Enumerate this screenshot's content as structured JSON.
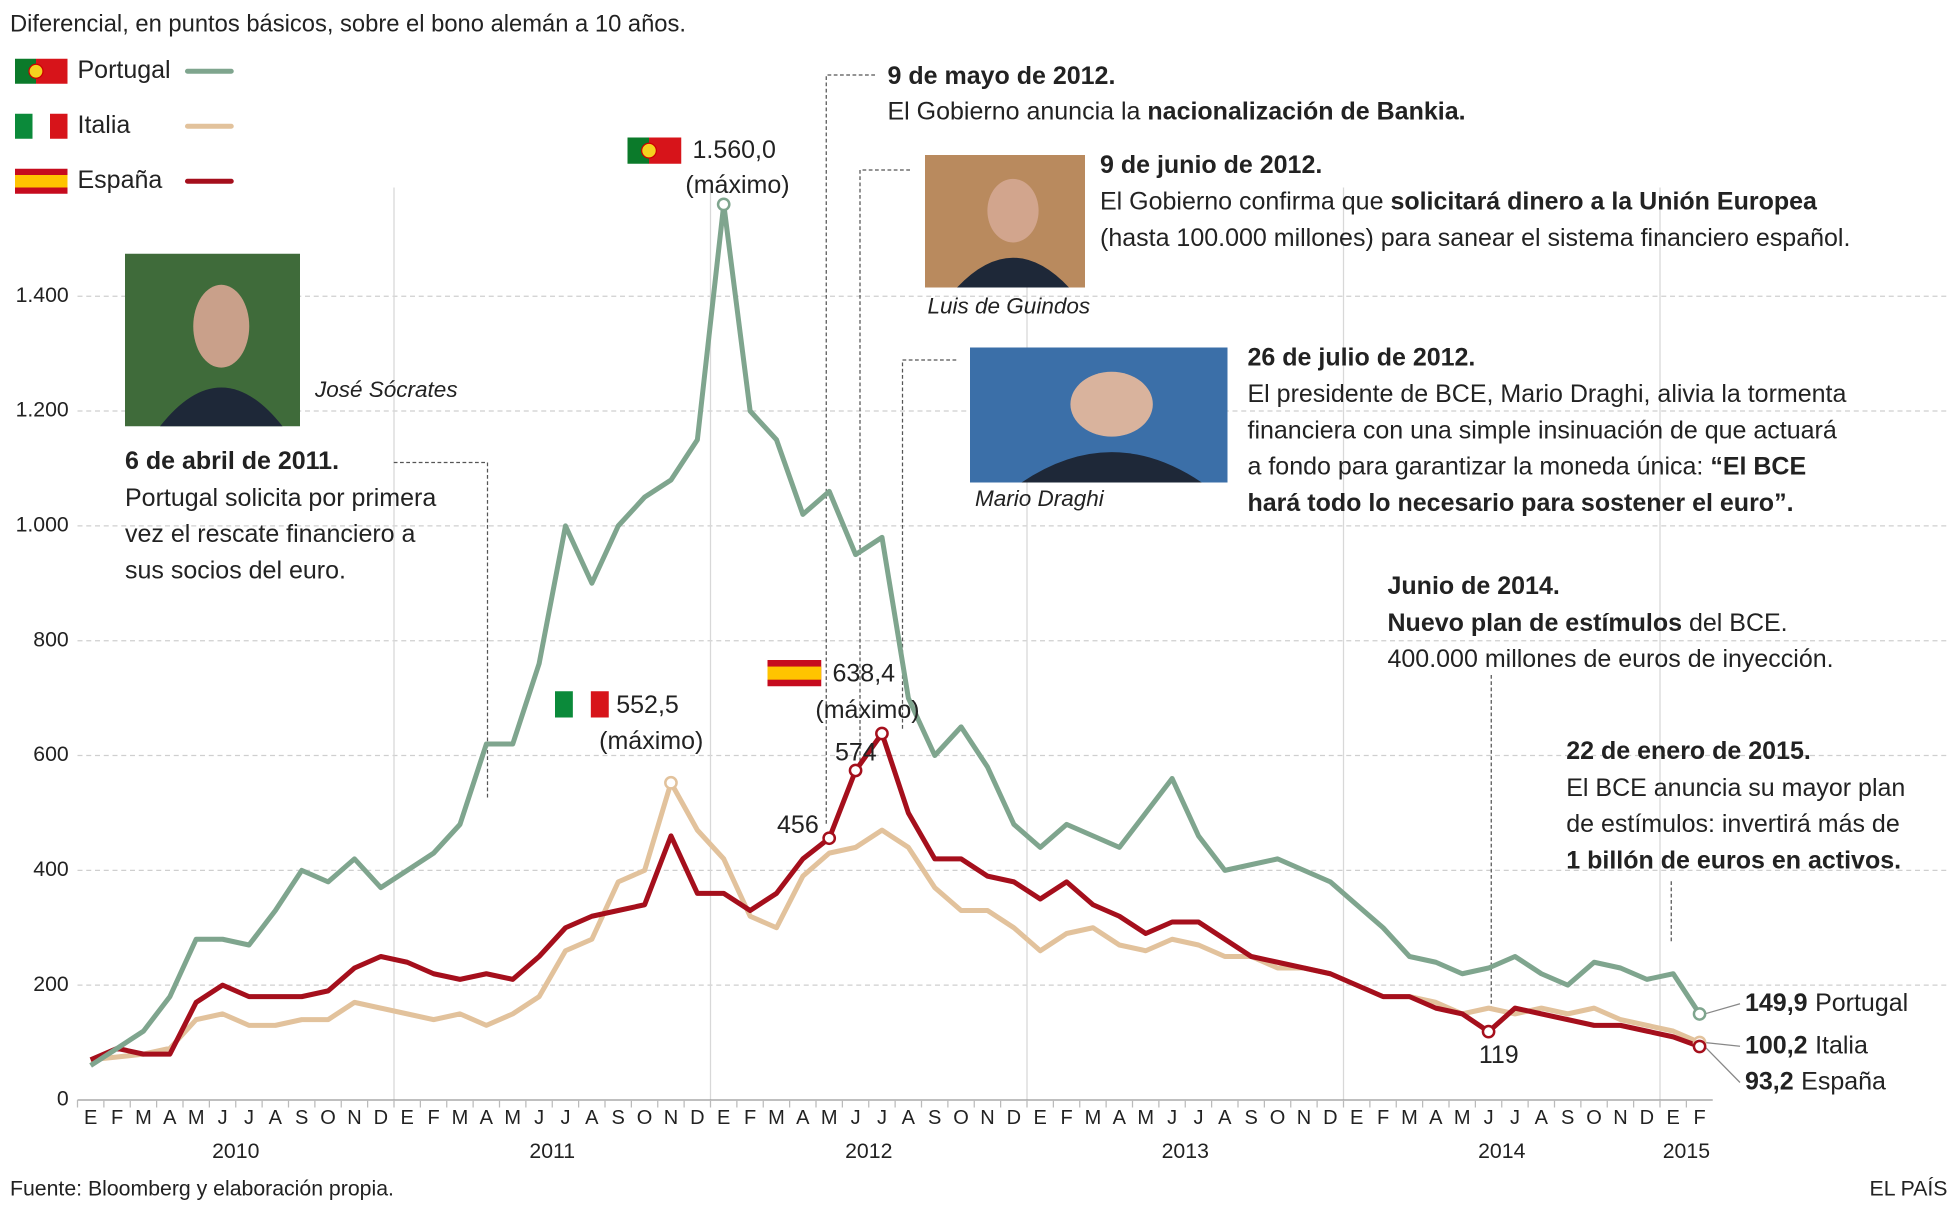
{
  "chart_data": {
    "type": "line",
    "subtitle": "Diferencial, en puntos básicos, sobre el bono alemán a 10 años.",
    "categories": [
      "E",
      "F",
      "M",
      "A",
      "M",
      "J",
      "J",
      "A",
      "S",
      "O",
      "N",
      "D",
      "E",
      "F",
      "M",
      "A",
      "M",
      "J",
      "J",
      "A",
      "S",
      "O",
      "N",
      "D",
      "E",
      "F",
      "M",
      "A",
      "M",
      "J",
      "J",
      "A",
      "S",
      "O",
      "N",
      "D",
      "E",
      "F",
      "M",
      "A",
      "M",
      "J",
      "J",
      "A",
      "S",
      "O",
      "N",
      "D",
      "E",
      "F",
      "M",
      "A",
      "M",
      "J",
      "J",
      "A",
      "S",
      "O",
      "N",
      "D",
      "E",
      "F"
    ],
    "years": [
      "2010",
      "2011",
      "2012",
      "2013",
      "2014",
      "2015"
    ],
    "series": [
      {
        "name": "Portugal",
        "color": "#7fa58e",
        "peak_note": "(máximo)",
        "values": [
          60,
          90,
          120,
          180,
          280,
          280,
          270,
          330,
          400,
          380,
          420,
          370,
          400,
          430,
          480,
          620,
          620,
          760,
          1000,
          900,
          1000,
          1050,
          1080,
          1150,
          1560,
          1200,
          1150,
          1020,
          1060,
          950,
          980,
          700,
          600,
          650,
          580,
          480,
          440,
          480,
          460,
          440,
          500,
          560,
          460,
          400,
          410,
          420,
          400,
          380,
          340,
          300,
          250,
          240,
          220,
          230,
          250,
          220,
          200,
          240,
          230,
          210,
          220,
          149.9
        ],
        "value_labels": [
          null,
          null,
          null,
          null,
          null,
          null,
          null,
          null,
          null,
          null,
          null,
          null,
          null,
          null,
          null,
          null,
          null,
          null,
          null,
          null,
          null,
          null,
          null,
          null,
          "1.560,0",
          null,
          null,
          null,
          null,
          null,
          null,
          null,
          null,
          null,
          null,
          null,
          null,
          null,
          null,
          null,
          null,
          null,
          null,
          null,
          null,
          null,
          null,
          null,
          null,
          null,
          null,
          null,
          null,
          null,
          null,
          null,
          null,
          null,
          null,
          null,
          null,
          "149,9"
        ]
      },
      {
        "name": "Italia",
        "color": "#e2c29c",
        "peak_note": "(máximo)",
        "values": [
          70,
          75,
          80,
          90,
          140,
          150,
          130,
          130,
          140,
          140,
          170,
          160,
          150,
          140,
          150,
          130,
          150,
          180,
          260,
          280,
          380,
          400,
          552.5,
          470,
          420,
          320,
          300,
          390,
          430,
          440,
          470,
          440,
          370,
          330,
          330,
          300,
          260,
          290,
          300,
          270,
          260,
          280,
          270,
          250,
          250,
          230,
          230,
          220,
          200,
          180,
          180,
          170,
          150,
          160,
          150,
          160,
          150,
          160,
          140,
          130,
          120,
          100.2
        ],
        "value_labels": [
          null,
          null,
          null,
          null,
          null,
          null,
          null,
          null,
          null,
          null,
          null,
          null,
          null,
          null,
          null,
          null,
          null,
          null,
          null,
          null,
          null,
          null,
          "552,5",
          null,
          null,
          null,
          null,
          null,
          null,
          null,
          null,
          null,
          null,
          null,
          null,
          null,
          null,
          null,
          null,
          null,
          null,
          null,
          null,
          null,
          null,
          null,
          null,
          null,
          null,
          null,
          null,
          null,
          null,
          null,
          null,
          null,
          null,
          null,
          null,
          null,
          null,
          "100,2"
        ]
      },
      {
        "name": "España",
        "color": "#a50f1c",
        "peak_note": "(máximo)",
        "values": [
          70,
          90,
          80,
          80,
          170,
          200,
          180,
          180,
          180,
          190,
          230,
          250,
          240,
          220,
          210,
          220,
          210,
          250,
          300,
          320,
          330,
          340,
          460,
          360,
          360,
          330,
          360,
          420,
          456,
          574,
          638.4,
          500,
          420,
          420,
          390,
          380,
          350,
          380,
          340,
          320,
          290,
          310,
          310,
          280,
          250,
          240,
          230,
          220,
          200,
          180,
          180,
          160,
          150,
          119,
          160,
          150,
          140,
          130,
          130,
          120,
          110,
          93.2
        ],
        "value_labels": [
          null,
          null,
          null,
          null,
          null,
          null,
          null,
          null,
          null,
          null,
          null,
          null,
          null,
          null,
          null,
          null,
          null,
          null,
          null,
          null,
          null,
          null,
          null,
          null,
          null,
          null,
          null,
          null,
          "456",
          "574",
          "638,4",
          null,
          null,
          null,
          null,
          null,
          null,
          null,
          null,
          null,
          null,
          null,
          null,
          null,
          null,
          null,
          null,
          null,
          null,
          null,
          null,
          null,
          null,
          "119",
          null,
          null,
          null,
          null,
          null,
          null,
          null,
          "93,2"
        ]
      }
    ],
    "ylim": [
      0,
      1600
    ],
    "yticks": [
      0,
      200,
      400,
      600,
      800,
      {
        "value": 1000,
        "label": "1.000"
      },
      {
        "value": 1200,
        "label": "1.200"
      },
      {
        "value": 1400,
        "label": "1.400"
      }
    ],
    "grid": true,
    "photos": [
      "José Sócrates",
      "Luis de Guindos",
      "Mario Draghi"
    ],
    "annotations": [
      {
        "title": "6 de abril de 2011.",
        "lines": [
          [
            {
              "text": "Portugal solicita por primera"
            }
          ],
          [
            {
              "text": "vez el rescate financiero a"
            }
          ],
          [
            {
              "text": "sus socios del euro."
            }
          ]
        ]
      },
      {
        "title": "9 de mayo de 2012.",
        "lines": [
          [
            {
              "text": "El Gobierno anuncia la "
            },
            {
              "text": "nacionalización de Bankia.",
              "bold": true
            }
          ]
        ]
      },
      {
        "title": "9 de junio de 2012.",
        "lines": [
          [
            {
              "text": "El Gobierno confirma que "
            },
            {
              "text": "solicitará dinero a la Unión Europea",
              "bold": true
            }
          ],
          [
            {
              "text": "(hasta 100.000 millones) para sanear el sistema financiero español."
            }
          ]
        ]
      },
      {
        "title": "26 de julio de 2012.",
        "lines": [
          [
            {
              "text": "El presidente de BCE, Mario Draghi, alivia la tormenta"
            }
          ],
          [
            {
              "text": "financiera con una simple insinuación de que actuará"
            }
          ],
          [
            {
              "text": "a fondo para garantizar la moneda única: "
            },
            {
              "text": "“El BCE",
              "bold": true
            }
          ],
          [
            {
              "text": "hará todo lo necesario para sostener el euro”.",
              "bold": true
            }
          ]
        ]
      },
      {
        "title": "Junio de 2014.",
        "lines": [
          [
            {
              "text": "Nuevo plan de estímulos",
              "bold": true
            },
            {
              "text": " del BCE."
            }
          ],
          [
            {
              "text": "400.000 millones de euros de inyección."
            }
          ]
        ]
      },
      {
        "title": "22 de enero de 2015.",
        "lines": [
          [
            {
              "text": "El BCE anuncia su mayor plan"
            }
          ],
          [
            {
              "text": "de estímulos: invertirá más de"
            }
          ],
          [
            {
              "text": "1 billón de euros en activos.",
              "bold": true
            }
          ]
        ]
      }
    ],
    "source": "Fuente: Bloomberg y elaboración propia.",
    "credit": "EL PAÍS"
  }
}
